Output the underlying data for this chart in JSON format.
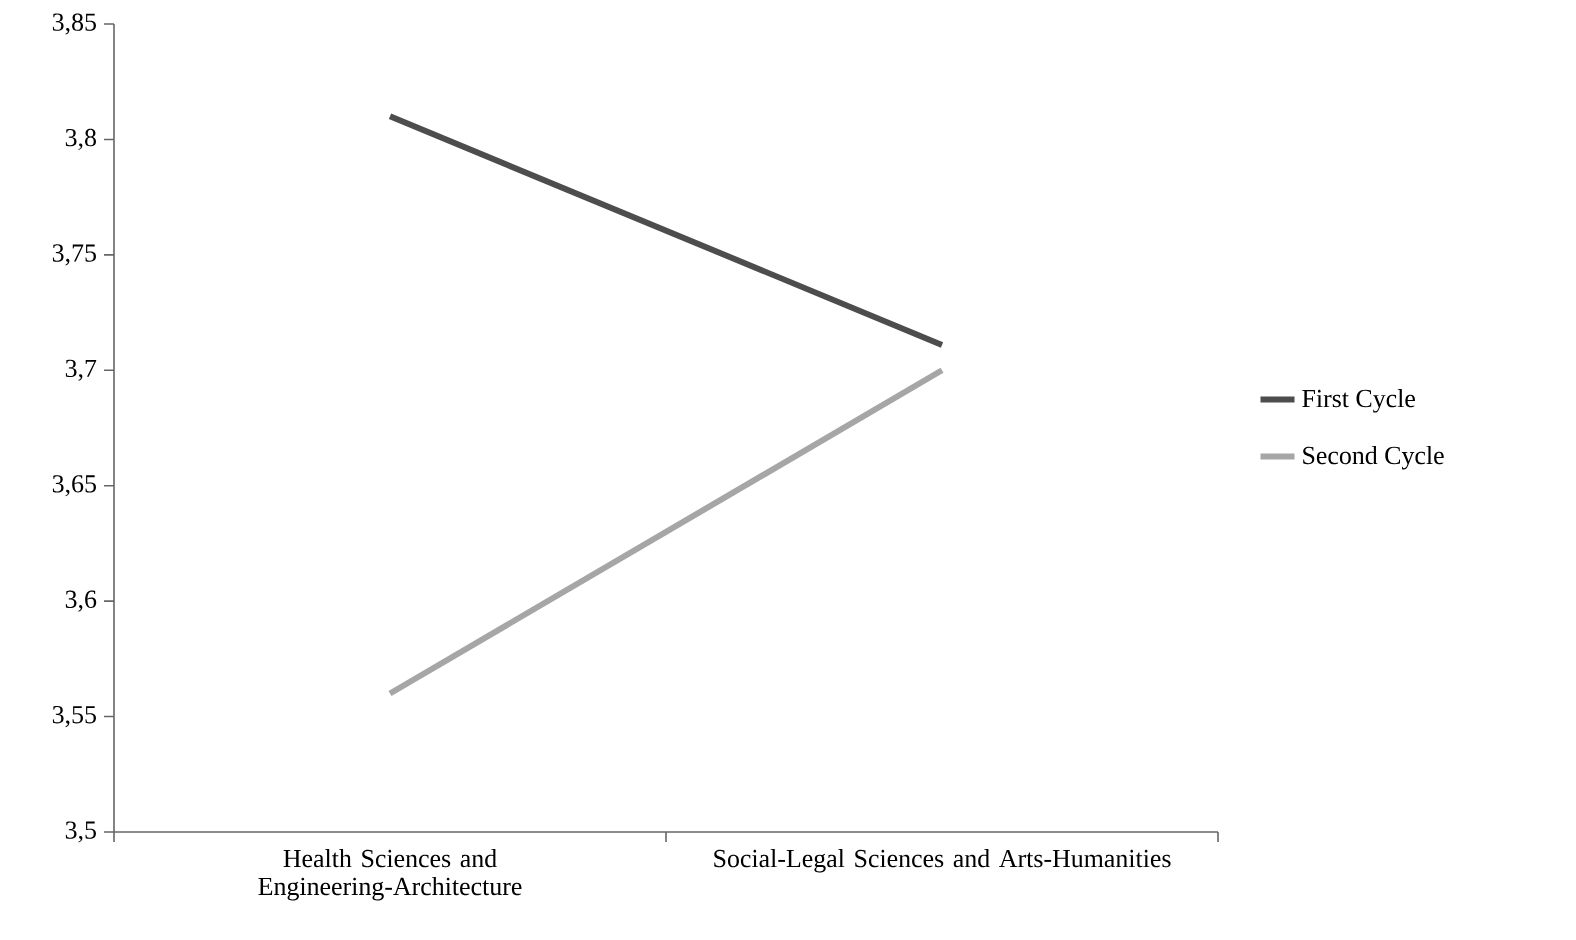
{
  "chart_data": {
    "type": "line",
    "categories": [
      "Health Sciences and Engineering-Architecture",
      "Social-Legal Sciences and Arts-Humanities"
    ],
    "series": [
      {
        "name": "First Cycle",
        "color": "#4d4d4d",
        "values": [
          3.81,
          3.711
        ]
      },
      {
        "name": "Second Cycle",
        "color": "#a6a6a6",
        "values": [
          3.56,
          3.7
        ]
      }
    ],
    "ylim": [
      3.5,
      3.85
    ],
    "yticks": [
      {
        "value": 3.5,
        "label": "3,5"
      },
      {
        "value": 3.55,
        "label": "3,55"
      },
      {
        "value": 3.6,
        "label": "3,6"
      },
      {
        "value": 3.65,
        "label": "3,65"
      },
      {
        "value": 3.7,
        "label": "3,7"
      },
      {
        "value": 3.75,
        "label": "3,75"
      },
      {
        "value": 3.8,
        "label": "3,8"
      },
      {
        "value": 3.85,
        "label": "3,85"
      }
    ],
    "grid": false,
    "legend": "right",
    "marker": "none",
    "line_style": "solid"
  }
}
